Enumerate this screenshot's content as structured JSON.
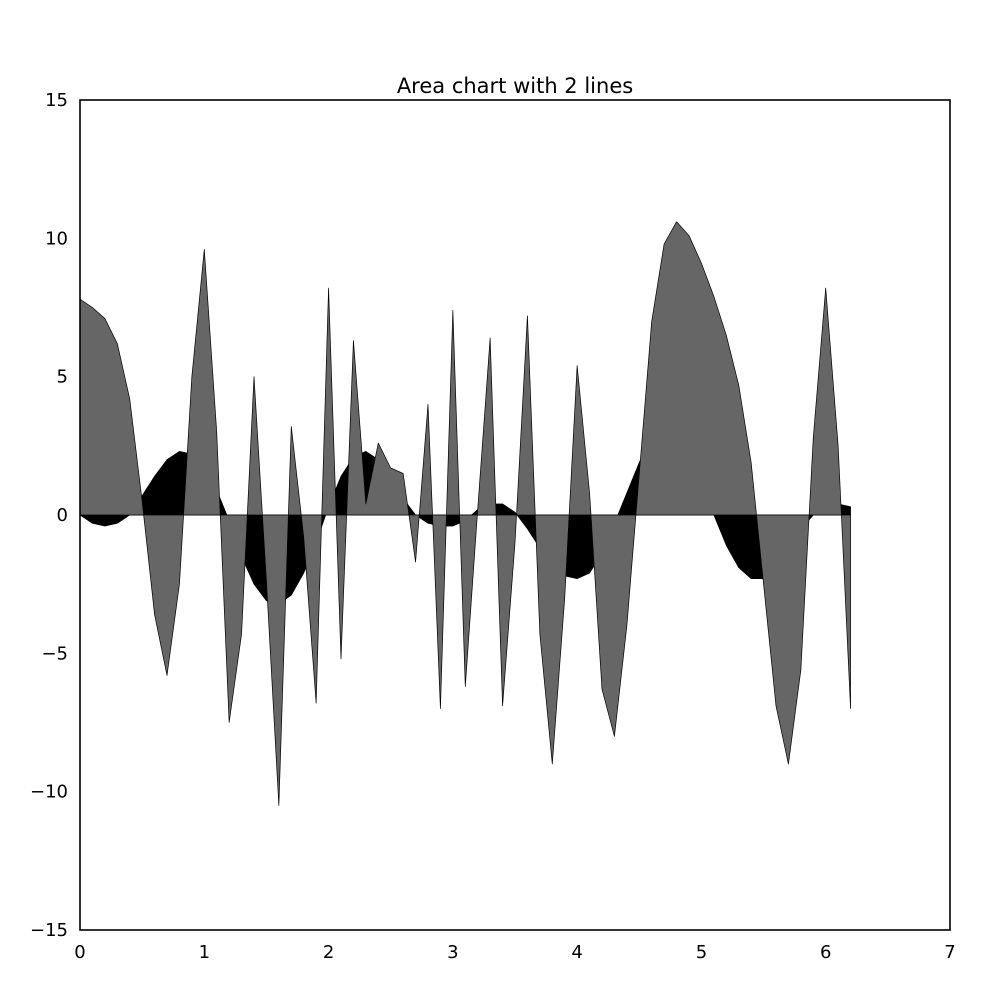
{
  "chart_data": {
    "type": "area",
    "title": "Area chart with 2 lines",
    "xlabel": "",
    "ylabel": "",
    "xlim": [
      0,
      7
    ],
    "ylim": [
      -15,
      15
    ],
    "xticks": [
      0,
      1,
      2,
      3,
      4,
      5,
      6,
      7
    ],
    "yticks": [
      -15,
      -10,
      -5,
      0,
      5,
      10,
      15
    ],
    "xtick_labels": [
      "0",
      "1",
      "2",
      "3",
      "4",
      "5",
      "6",
      "7"
    ],
    "ytick_labels": [
      "−15",
      "−10",
      "−5",
      "0",
      "5",
      "10",
      "15"
    ],
    "grid": false,
    "legend": "none",
    "x": [
      0.0,
      0.1,
      0.2,
      0.3,
      0.4,
      0.5,
      0.6,
      0.7,
      0.8,
      0.9,
      1.0,
      1.1,
      1.2,
      1.3,
      1.4,
      1.5,
      1.6,
      1.7,
      1.8,
      1.9,
      2.0,
      2.1,
      2.2,
      2.3,
      2.4,
      2.5,
      2.6,
      2.7,
      2.8,
      2.9,
      3.0,
      3.1,
      3.2,
      3.3,
      3.4,
      3.5,
      3.6,
      3.7,
      3.8,
      3.9,
      4.0,
      4.1,
      4.2,
      4.3,
      4.4,
      4.5,
      4.6,
      4.7,
      4.8,
      4.9,
      5.0,
      5.1,
      5.2,
      5.3,
      5.4,
      5.5,
      5.6,
      5.7,
      5.8,
      5.9,
      6.0,
      6.1,
      6.2
    ],
    "series": [
      {
        "color": "#000000",
        "values": [
          0.0,
          -0.3,
          -0.4,
          -0.3,
          0.0,
          0.7,
          1.4,
          2.0,
          2.3,
          2.2,
          1.8,
          0.9,
          -0.2,
          -1.5,
          -2.5,
          -3.1,
          -3.2,
          -2.9,
          -2.1,
          -1.0,
          0.3,
          1.4,
          2.1,
          2.3,
          2.0,
          1.4,
          0.6,
          0.0,
          -0.3,
          -0.4,
          -0.4,
          -0.2,
          0.2,
          0.4,
          0.4,
          0.1,
          -0.5,
          -1.2,
          -1.8,
          -2.2,
          -2.3,
          -2.1,
          -1.4,
          -0.3,
          0.8,
          1.9,
          2.8,
          3.2,
          3.0,
          2.3,
          1.2,
          0.0,
          -1.1,
          -1.9,
          -2.3,
          -2.3,
          -1.8,
          -1.2,
          -0.5,
          0.0,
          0.3,
          0.4,
          0.3
        ]
      },
      {
        "color": "#666666",
        "values": [
          7.8,
          7.5,
          7.1,
          6.2,
          4.2,
          0.5,
          -3.6,
          -5.8,
          -2.5,
          5.0,
          9.6,
          3.0,
          -7.5,
          -4.3,
          5.0,
          -2.4,
          -10.5,
          3.2,
          -0.8,
          -6.8,
          8.2,
          -5.2,
          6.3,
          0.4,
          2.6,
          1.7,
          1.5,
          -1.7,
          4.0,
          -7.0,
          7.4,
          -6.2,
          0.2,
          6.4,
          -6.9,
          -1.0,
          7.2,
          -4.3,
          -9.0,
          -3.0,
          5.4,
          0.8,
          -6.3,
          -8.0,
          -4.0,
          1.5,
          7.0,
          9.8,
          10.6,
          10.1,
          9.1,
          7.9,
          6.5,
          4.7,
          1.9,
          -2.5,
          -6.9,
          -9.0,
          -5.6,
          2.8,
          8.2,
          2.5,
          -7.0
        ]
      }
    ]
  }
}
